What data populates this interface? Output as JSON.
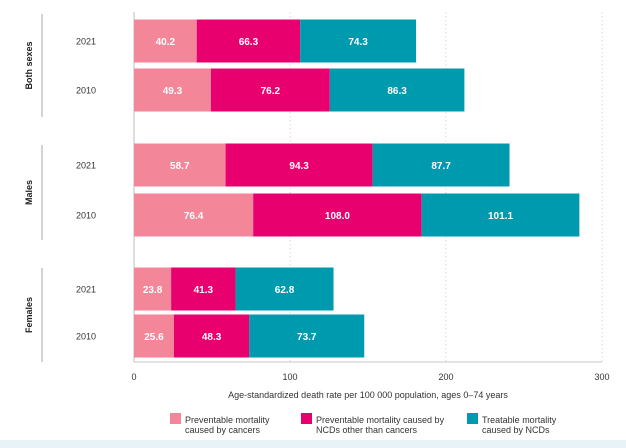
{
  "chart_data": {
    "type": "bar",
    "orientation": "horizontal",
    "stacked": true,
    "xlabel": "Age-standardized death rate per 100 000 population, ages 0–74 years",
    "xlim": [
      0,
      300
    ],
    "xticks": [
      0,
      100,
      200,
      300
    ],
    "grid": true,
    "legend_position": "bottom",
    "groups": [
      {
        "name": "Both sexes",
        "rows": [
          {
            "year": "2021",
            "values": [
              40.2,
              66.3,
              74.3
            ],
            "labels": [
              "40.2",
              "66.3",
              "74.3"
            ]
          },
          {
            "year": "2010",
            "values": [
              49.3,
              76.2,
              86.3
            ],
            "labels": [
              "49.3",
              "76.2",
              "86.3"
            ]
          }
        ]
      },
      {
        "name": "Males",
        "rows": [
          {
            "year": "2021",
            "values": [
              58.7,
              94.3,
              87.7
            ],
            "labels": [
              "58.7",
              "94.3",
              "87.7"
            ]
          },
          {
            "year": "2010",
            "values": [
              76.4,
              108.0,
              101.1
            ],
            "labels": [
              "76.4",
              "108.0",
              "101.1"
            ]
          }
        ]
      },
      {
        "name": "Females",
        "rows": [
          {
            "year": "2021",
            "values": [
              23.8,
              41.3,
              62.8
            ],
            "labels": [
              "23.8",
              "41.3",
              "62.8"
            ]
          },
          {
            "year": "2010",
            "values": [
              25.6,
              48.3,
              73.7
            ],
            "labels": [
              "25.6",
              "48.3",
              "73.7"
            ]
          }
        ]
      }
    ],
    "series": [
      {
        "name": "Preventable mortality caused by cancers",
        "legend_lines": [
          "Preventable mortality",
          "caused by cancers"
        ],
        "color": "#f4869a"
      },
      {
        "name": "Preventable mortality caused by NCDs other than cancers",
        "legend_lines": [
          "Preventable mortality caused by",
          "NCDs other than cancers"
        ],
        "color": "#e8006f"
      },
      {
        "name": "Treatable mortality caused by NCDs",
        "legend_lines": [
          "Treatable mortality",
          "caused by NCDs"
        ],
        "color": "#009aaf"
      }
    ]
  }
}
